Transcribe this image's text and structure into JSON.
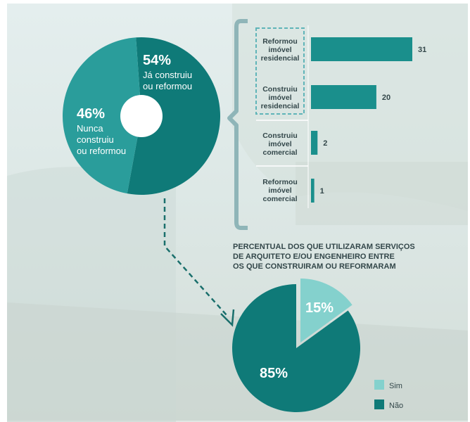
{
  "colors": {
    "dark_teal": "#0f7a78",
    "mid_teal": "#2a9d9b",
    "light_teal": "#84d1cd",
    "bracket": "#8fb5b8",
    "text_dark": "#33474a",
    "white": "#ffffff"
  },
  "chart_data": [
    {
      "type": "pie",
      "variant": "donut",
      "slices": [
        {
          "value": 54,
          "label": "54%",
          "caption": "Já construiu ou reformou"
        },
        {
          "value": 46,
          "label": "46%",
          "caption": "Nunca construiu ou reformou"
        }
      ]
    },
    {
      "type": "bar",
      "orientation": "horizontal",
      "categories": [
        "Reformou imóvel residencial",
        "Construiu imóvel residencial",
        "Construiu imóvel comercial",
        "Reformou imóvel comercial"
      ],
      "values": [
        31,
        20,
        2,
        1
      ],
      "highlighted": [
        "Reformou imóvel residencial",
        "Construiu imóvel residencial"
      ]
    },
    {
      "type": "pie",
      "title": "PERCENTUAL DOS QUE UTILIZARAM SERVIÇOS DE ARQUITETO E/OU ENGENHEIRO ENTRE OS QUE CONSTRUIRAM OU REFORMARAM",
      "slices": [
        {
          "name": "Sim",
          "value": 15,
          "label": "15%"
        },
        {
          "name": "Não",
          "value": 85,
          "label": "85%"
        }
      ],
      "legend": "bottom-right"
    }
  ],
  "donut": {
    "big_label": "54%",
    "big_caption": [
      "Já construiu",
      "ou reformou"
    ],
    "small_label": "46%",
    "small_caption": [
      "Nunca",
      "construiu",
      "ou reformou"
    ]
  },
  "bars": {
    "labels": [
      [
        "Reformou",
        "imóvel",
        "residencial"
      ],
      [
        "Construiu",
        "imóvel",
        "residencial"
      ],
      [
        "Construiu",
        "imóvel",
        "comercial"
      ],
      [
        "Reformou",
        "imóvel",
        "comercial"
      ]
    ],
    "values_text": [
      "31",
      "20",
      "2",
      "1"
    ]
  },
  "pie2": {
    "title_lines": [
      "PERCENTUAL DOS QUE UTILIZARAM SERVIÇOS",
      "DE ARQUITETO E/OU ENGENHEIRO ENTRE",
      "OS QUE CONSTRUIRAM OU REFORMARAM"
    ],
    "sim_label": "15%",
    "nao_label": "85%",
    "legend_sim": "Sim",
    "legend_nao": "Não"
  }
}
